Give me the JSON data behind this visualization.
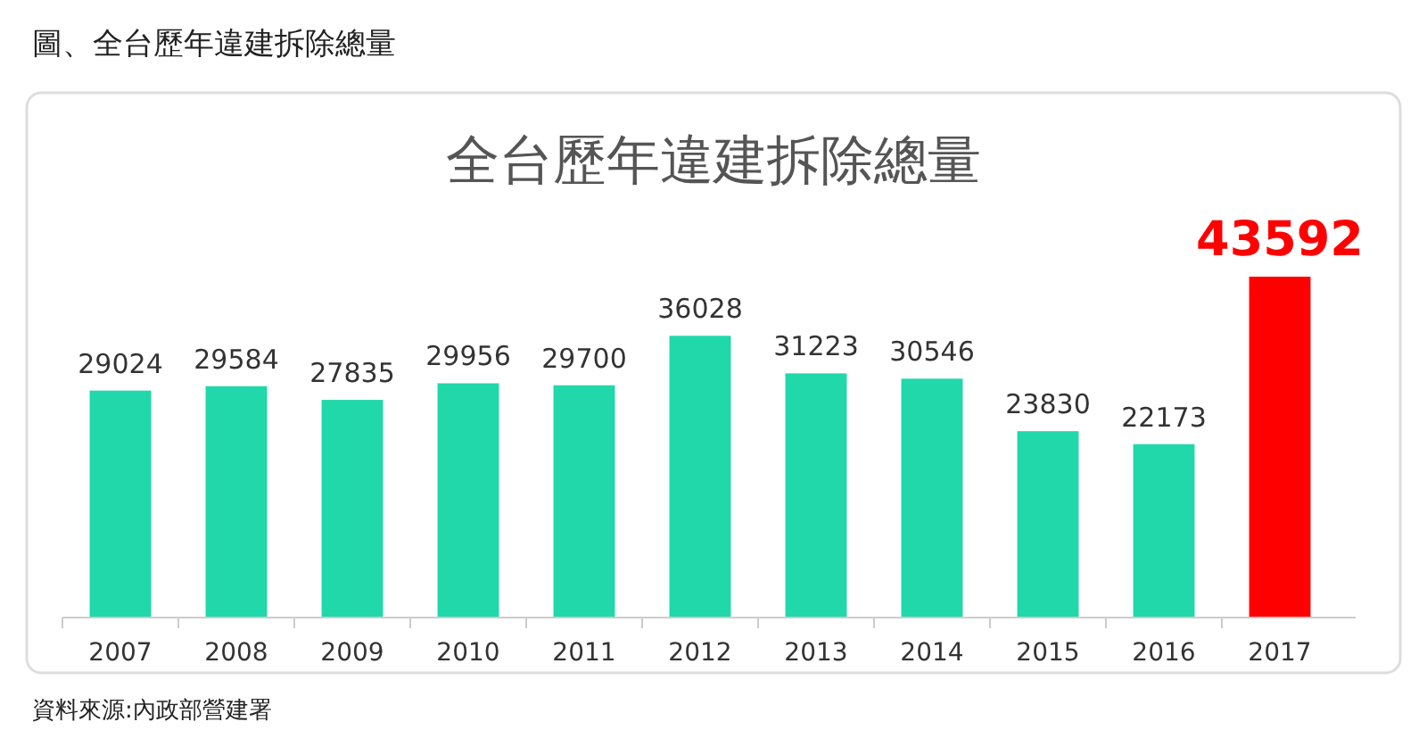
{
  "chart_data": {
    "type": "bar",
    "title": "圖、全台歷年違建拆除總量",
    "subtitle": "全台歷年違建拆除總量",
    "categories": [
      "2007",
      "2008",
      "2009",
      "2010",
      "2011",
      "2012",
      "2013",
      "2014",
      "2015",
      "2016",
      "2017"
    ],
    "values": [
      29024,
      29584,
      27835,
      29956,
      29700,
      36028,
      31223,
      30546,
      23830,
      22173,
      43592
    ],
    "colors": [
      "#20d8aa",
      "#20d8aa",
      "#20d8aa",
      "#20d8aa",
      "#20d8aa",
      "#20d8aa",
      "#20d8aa",
      "#20d8aa",
      "#20d8aa",
      "#20d8aa",
      "#ff0000"
    ],
    "data_labels": true,
    "annotations": [
      "資料來源:內政部營建署"
    ]
  }
}
